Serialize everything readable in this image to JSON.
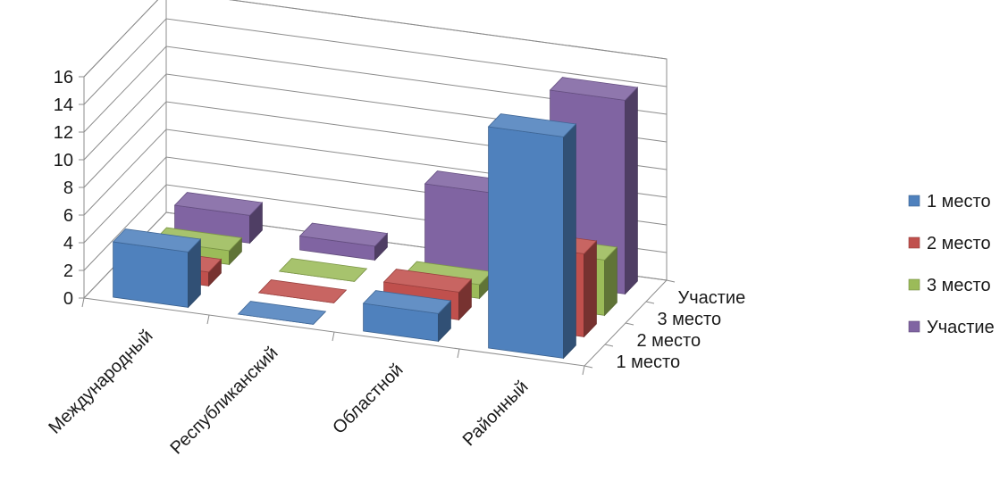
{
  "chart_data": {
    "type": "bar",
    "subtype": "3d-column",
    "categories": [
      "Международный",
      "Республиканский",
      "Областной",
      "Районный"
    ],
    "series": [
      {
        "name": "1 место",
        "color": "#4F81BD",
        "values": [
          4,
          0,
          2,
          16
        ]
      },
      {
        "name": "2 место",
        "color": "#C0504D",
        "values": [
          1,
          0,
          2,
          6
        ]
      },
      {
        "name": "3 место",
        "color": "#9BBB59",
        "values": [
          1,
          0,
          1,
          4
        ]
      },
      {
        "name": "Участие",
        "color": "#8064A2",
        "values": [
          2,
          1,
          6,
          14
        ]
      }
    ],
    "ylim": [
      0,
      16
    ],
    "yticks": [
      "0",
      "2",
      "4",
      "6",
      "8",
      "10",
      "12",
      "14",
      "16"
    ],
    "grid": true,
    "legend_position": "right"
  }
}
